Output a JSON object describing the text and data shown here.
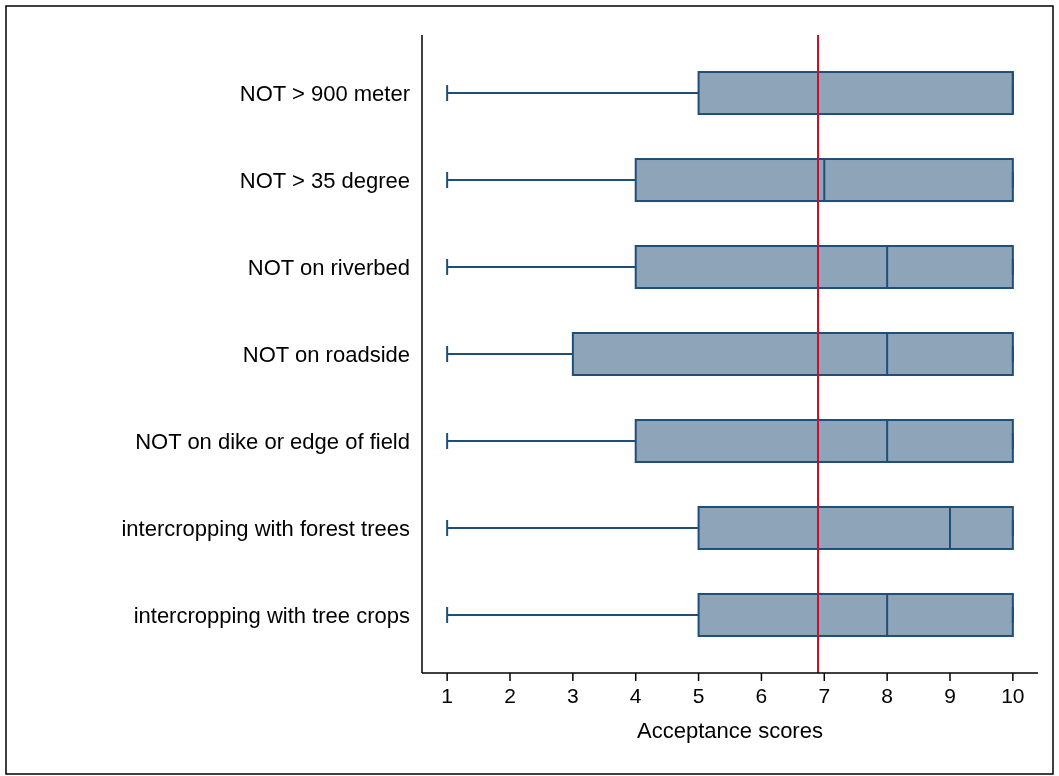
{
  "chart_data": {
    "type": "box",
    "orientation": "horizontal",
    "xlabel": "Acceptance scores",
    "categories": [
      "NOT > 900 meter",
      "NOT > 35 degree",
      "NOT on riverbed",
      "NOT on roadside",
      "NOT on dike or edge of field",
      "intercropping with forest trees",
      "intercropping with tree crops"
    ],
    "boxes": [
      {
        "low": 1,
        "q1": 5,
        "median": 10,
        "q3": 10,
        "high": 10
      },
      {
        "low": 1,
        "q1": 4,
        "median": 7,
        "q3": 10,
        "high": 10
      },
      {
        "low": 1,
        "q1": 4,
        "median": 8,
        "q3": 10,
        "high": 10
      },
      {
        "low": 1,
        "q1": 3,
        "median": 8,
        "q3": 10,
        "high": 10
      },
      {
        "low": 1,
        "q1": 4,
        "median": 8,
        "q3": 10,
        "high": 10
      },
      {
        "low": 1,
        "q1": 5,
        "median": 9,
        "q3": 10,
        "high": 10
      },
      {
        "low": 1,
        "q1": 5,
        "median": 8,
        "q3": 10,
        "high": 10
      }
    ],
    "color": "#8ea5b9",
    "xlim": [
      0.6,
      10.4
    ],
    "xticks": [
      1,
      2,
      3,
      4,
      5,
      6,
      7,
      8,
      9,
      10
    ],
    "ref_lines": [
      {
        "axis": "x",
        "value": 6.9,
        "color": "#c8102e"
      }
    ],
    "grid": false
  }
}
